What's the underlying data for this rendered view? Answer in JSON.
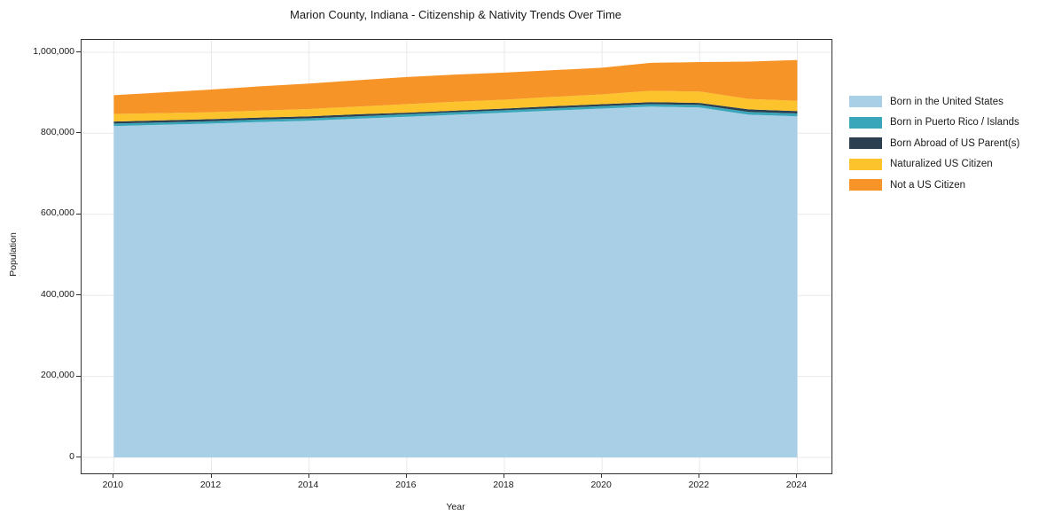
{
  "title": "Marion County, Indiana - Citizenship & Nativity Trends Over Time",
  "chart_data": {
    "type": "area",
    "stacked": true,
    "title": "Marion County, Indiana - Citizenship & Nativity Trends Over Time",
    "xlabel": "Year",
    "ylabel": "Population",
    "x": [
      2010,
      2011,
      2012,
      2013,
      2014,
      2015,
      2016,
      2017,
      2018,
      2019,
      2020,
      2021,
      2022,
      2023,
      2024
    ],
    "series": [
      {
        "name": "Born in the United States",
        "color": "#a8cfe6",
        "values": [
          818000,
          821000,
          824000,
          828000,
          831000,
          836000,
          841000,
          846000,
          851000,
          856000,
          861000,
          866000,
          864000,
          846000,
          842000
        ]
      },
      {
        "name": "Born in Puerto Rico / Islands",
        "color": "#3aa6b9",
        "values": [
          6000,
          6000,
          6000,
          6000,
          6000,
          6000,
          6000,
          6000,
          6000,
          6000,
          6000,
          6000,
          6000,
          7000,
          7000
        ]
      },
      {
        "name": "Born Abroad of US Parent(s)",
        "color": "#2b3f50",
        "values": [
          5000,
          5000,
          5000,
          5000,
          5000,
          5000,
          4000,
          4000,
          4000,
          5000,
          5000,
          5000,
          5000,
          6000,
          6000
        ]
      },
      {
        "name": "Naturalized US Citizen",
        "color": "#fcc32d",
        "values": [
          19000,
          18000,
          17000,
          17000,
          18000,
          19000,
          21000,
          22000,
          22000,
          23000,
          24000,
          28000,
          28000,
          26000,
          25000
        ]
      },
      {
        "name": "Not a US Citizen",
        "color": "#f79428",
        "values": [
          46000,
          51000,
          56000,
          60000,
          63000,
          65000,
          67000,
          67000,
          67000,
          66000,
          66000,
          69000,
          73000,
          92000,
          101000
        ]
      }
    ],
    "xlim": [
      2009.34,
      2024.7
    ],
    "ylim": [
      -38500,
      1031000
    ],
    "yticks": [
      {
        "value": 0,
        "label": "0"
      },
      {
        "value": 200000,
        "label": "200,000"
      },
      {
        "value": 400000,
        "label": "400,000"
      },
      {
        "value": 600000,
        "label": "600,000"
      },
      {
        "value": 800000,
        "label": "800,000"
      },
      {
        "value": 1000000,
        "label": "1,000,000"
      }
    ],
    "xticks": [
      {
        "value": 2010,
        "label": "2010"
      },
      {
        "value": 2012,
        "label": "2012"
      },
      {
        "value": 2014,
        "label": "2014"
      },
      {
        "value": 2016,
        "label": "2016"
      },
      {
        "value": 2018,
        "label": "2018"
      },
      {
        "value": 2020,
        "label": "2020"
      },
      {
        "value": 2022,
        "label": "2022"
      },
      {
        "value": 2024,
        "label": "2024"
      }
    ],
    "grid": true,
    "grid_color": "#e9e9e9",
    "frame_color": "#333333",
    "legend_position": "right",
    "legend_frame": false
  }
}
